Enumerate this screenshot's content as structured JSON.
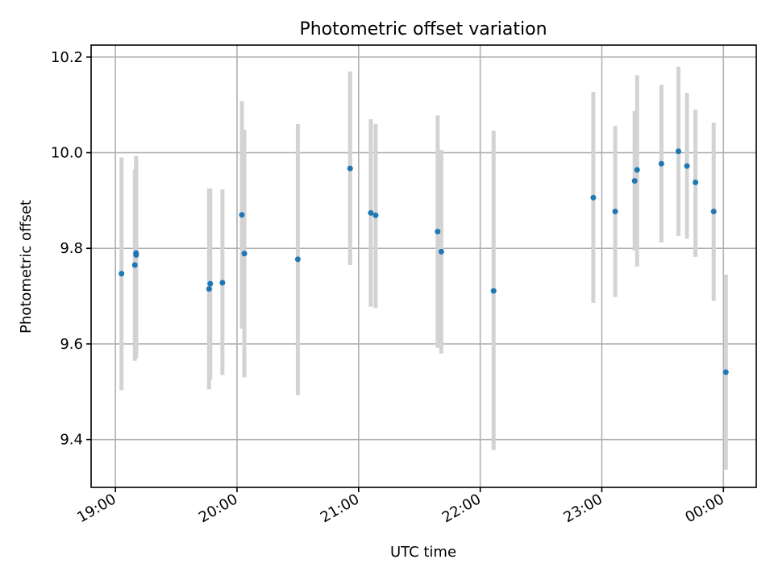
{
  "chart_data": {
    "type": "scatter",
    "title": "Photometric offset variation",
    "xlabel": "UTC time",
    "ylabel": "Photometric offset",
    "grid": true,
    "x_unit": "hours since 19:00 UTC",
    "xlim": [
      -0.2,
      5.27
    ],
    "ylim": [
      9.3,
      10.225
    ],
    "xticks": [
      {
        "value": 0,
        "label": "19:00"
      },
      {
        "value": 1,
        "label": "20:00"
      },
      {
        "value": 2,
        "label": "21:00"
      },
      {
        "value": 3,
        "label": "22:00"
      },
      {
        "value": 4,
        "label": "23:00"
      },
      {
        "value": 5,
        "label": "00:00"
      }
    ],
    "yticks": [
      {
        "value": 9.4,
        "label": "9.4"
      },
      {
        "value": 9.6,
        "label": "9.6"
      },
      {
        "value": 9.8,
        "label": "9.8"
      },
      {
        "value": 10.0,
        "label": "10.0"
      },
      {
        "value": 10.2,
        "label": "10.2"
      }
    ],
    "point_color": "#1f77b4",
    "errorbar_color": "#d3d3d3",
    "points": [
      {
        "x": 0.05,
        "y": 9.747,
        "lo": 9.503,
        "hi": 9.99
      },
      {
        "x": 0.16,
        "y": 9.765,
        "lo": 9.565,
        "hi": 9.965
      },
      {
        "x": 0.17,
        "y": 9.79,
        "lo": 9.57,
        "hi": 9.992
      },
      {
        "x": 0.17,
        "y": 9.786,
        "lo": 9.578,
        "hi": 9.993
      },
      {
        "x": 0.77,
        "y": 9.715,
        "lo": 9.505,
        "hi": 9.925
      },
      {
        "x": 0.78,
        "y": 9.726,
        "lo": 9.525,
        "hi": 9.925
      },
      {
        "x": 0.88,
        "y": 9.728,
        "lo": 9.535,
        "hi": 9.923
      },
      {
        "x": 1.04,
        "y": 9.87,
        "lo": 9.632,
        "hi": 10.108
      },
      {
        "x": 1.06,
        "y": 9.789,
        "lo": 9.53,
        "hi": 10.048
      },
      {
        "x": 1.5,
        "y": 9.777,
        "lo": 9.493,
        "hi": 10.06
      },
      {
        "x": 1.93,
        "y": 9.967,
        "lo": 9.765,
        "hi": 10.17
      },
      {
        "x": 2.1,
        "y": 9.874,
        "lo": 9.678,
        "hi": 10.07
      },
      {
        "x": 2.14,
        "y": 9.869,
        "lo": 9.675,
        "hi": 10.06
      },
      {
        "x": 2.65,
        "y": 9.835,
        "lo": 9.592,
        "hi": 10.078
      },
      {
        "x": 2.68,
        "y": 9.793,
        "lo": 9.58,
        "hi": 10.006
      },
      {
        "x": 3.11,
        "y": 9.711,
        "lo": 9.378,
        "hi": 10.046
      },
      {
        "x": 3.93,
        "y": 9.906,
        "lo": 9.686,
        "hi": 10.127
      },
      {
        "x": 4.11,
        "y": 9.877,
        "lo": 9.698,
        "hi": 10.056
      },
      {
        "x": 4.27,
        "y": 9.941,
        "lo": 9.795,
        "hi": 10.087
      },
      {
        "x": 4.29,
        "y": 9.964,
        "lo": 9.762,
        "hi": 10.162
      },
      {
        "x": 4.49,
        "y": 9.977,
        "lo": 9.812,
        "hi": 10.142
      },
      {
        "x": 4.63,
        "y": 10.003,
        "lo": 9.826,
        "hi": 10.18
      },
      {
        "x": 4.7,
        "y": 9.972,
        "lo": 9.82,
        "hi": 10.125
      },
      {
        "x": 4.77,
        "y": 9.938,
        "lo": 9.782,
        "hi": 10.09
      },
      {
        "x": 4.92,
        "y": 9.877,
        "lo": 9.69,
        "hi": 10.063
      },
      {
        "x": 5.02,
        "y": 9.541,
        "lo": 9.337,
        "hi": 9.745
      }
    ]
  }
}
